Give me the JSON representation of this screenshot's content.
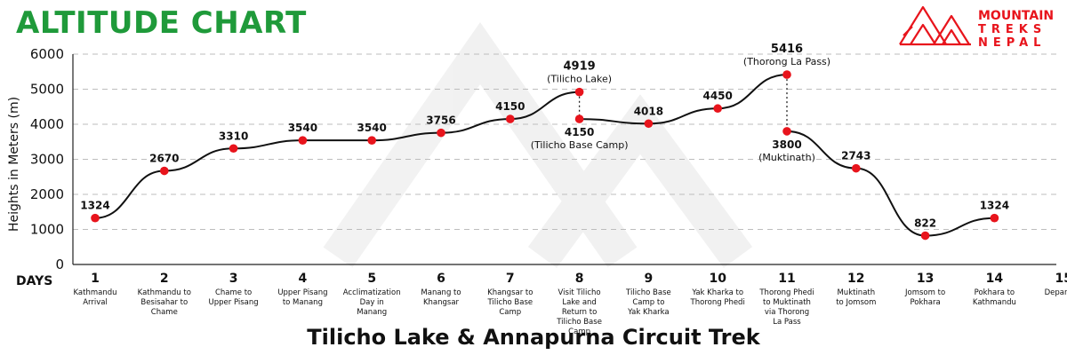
{
  "header": {
    "title": "ALTITUDE CHART",
    "logo_line1": "MOUNTAIN",
    "logo_line2": "TREKS",
    "logo_line3": "NEPAL",
    "accent_color": "#1f9a3a",
    "logo_color": "#e8141c"
  },
  "footer": {
    "title": "Tilicho Lake & Annapurna Circuit Trek"
  },
  "chart_data": {
    "type": "line",
    "ylabel": "Heights in Meters (m)",
    "xlabel": "DAYS",
    "ylim": [
      0,
      6000
    ],
    "yticks": [
      0,
      1000,
      2000,
      3000,
      4000,
      5000,
      6000
    ],
    "grid": true,
    "days": [
      {
        "day": "1",
        "lines": [
          "Kathmandu",
          "Arrival"
        ]
      },
      {
        "day": "2",
        "lines": [
          "Kathmandu to",
          "Besisahar to",
          "Chame"
        ]
      },
      {
        "day": "3",
        "lines": [
          "Chame to",
          "Upper Pisang"
        ]
      },
      {
        "day": "4",
        "lines": [
          "Upper Pisang",
          "to Manang"
        ]
      },
      {
        "day": "5",
        "lines": [
          "Acclimatization",
          "Day in",
          "Manang"
        ]
      },
      {
        "day": "6",
        "lines": [
          "Manang to",
          "Khangsar"
        ]
      },
      {
        "day": "7",
        "lines": [
          "Khangsar to",
          "Tilicho Base",
          "Camp"
        ]
      },
      {
        "day": "8",
        "lines": [
          "Visit Tilicho",
          "Lake and",
          "Return to",
          "Tilicho Base",
          "Camp"
        ]
      },
      {
        "day": "9",
        "lines": [
          "Tilicho Base",
          "Camp to",
          "Yak Kharka"
        ]
      },
      {
        "day": "10",
        "lines": [
          "Yak Kharka to",
          "Thorong Phedi"
        ]
      },
      {
        "day": "11",
        "lines": [
          "Thorong Phedi",
          "to Muktinath",
          "via Thorong",
          "La Pass"
        ]
      },
      {
        "day": "12",
        "lines": [
          "Muktinath",
          "to Jomsom"
        ]
      },
      {
        "day": "13",
        "lines": [
          "Jomsom to",
          "Pokhara"
        ]
      },
      {
        "day": "14",
        "lines": [
          "Pokhara to",
          "Kathmandu"
        ]
      },
      {
        "day": "15",
        "lines": [
          "Departure"
        ]
      }
    ],
    "points": [
      {
        "x": 1,
        "y": 1324,
        "label": "1324"
      },
      {
        "x": 2,
        "y": 2670,
        "label": "2670"
      },
      {
        "x": 3,
        "y": 3310,
        "label": "3310"
      },
      {
        "x": 4,
        "y": 3540,
        "label": "3540"
      },
      {
        "x": 5,
        "y": 3540,
        "label": "3540"
      },
      {
        "x": 6,
        "y": 3756,
        "label": "3756"
      },
      {
        "x": 7,
        "y": 4150,
        "label": "4150"
      },
      {
        "x": 8,
        "y": 4919,
        "label": "4919",
        "sublabel": "(Tilicho Lake)"
      },
      {
        "x": 8,
        "y": 4150,
        "label": "4150",
        "sublabel": "(Tilicho Base Camp)"
      },
      {
        "x": 9,
        "y": 4018,
        "label": "4018"
      },
      {
        "x": 10,
        "y": 4450,
        "label": "4450"
      },
      {
        "x": 11,
        "y": 5416,
        "label": "5416",
        "sublabel": "(Thorong La Pass)"
      },
      {
        "x": 11,
        "y": 3800,
        "label": "3800",
        "sublabel": "(Muktinath)"
      },
      {
        "x": 12,
        "y": 2743,
        "label": "2743"
      },
      {
        "x": 13,
        "y": 822,
        "label": "822"
      },
      {
        "x": 14,
        "y": 1324,
        "label": "1324"
      }
    ],
    "line_color": "#111111",
    "point_color": "#e8141c"
  }
}
